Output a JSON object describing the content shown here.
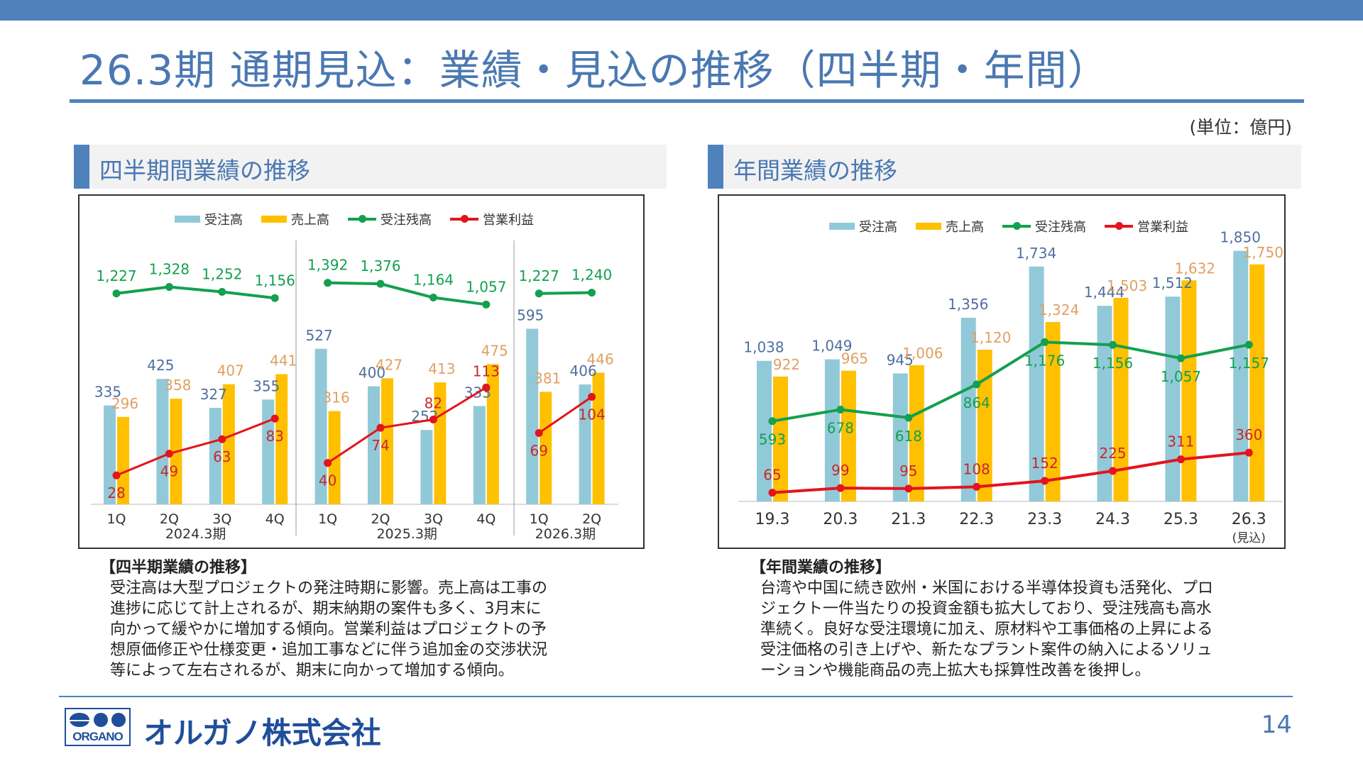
{
  "header": {
    "title": "26.3期 通期見込：業績・見込の推移（四半期・年間）",
    "unit": "(単位：億円)"
  },
  "sections": {
    "quarterly": "四半期間業績の推移",
    "annual": "年間業績の推移"
  },
  "legend": [
    "受注高",
    "売上高",
    "受注残高",
    "営業利益"
  ],
  "colors": {
    "orders": "#92c9d9",
    "sales": "#ffc000",
    "backlog": "#13a04f",
    "op": "#e3141c",
    "accent": "#4f81bd",
    "orders_label": "#4f6f9f",
    "sales_label": "#e0a060",
    "op_label": "#c8282c"
  },
  "chart_data": [
    {
      "type": "bar",
      "title": "四半期間業績の推移",
      "categories": [
        "1Q",
        "2Q",
        "3Q",
        "4Q",
        "1Q",
        "2Q",
        "3Q",
        "4Q",
        "1Q",
        "2Q"
      ],
      "groups": [
        {
          "label": "2024.3期",
          "count": 4
        },
        {
          "label": "2025.3期",
          "count": 4
        },
        {
          "label": "2026.3期",
          "count": 2
        }
      ],
      "series": [
        {
          "name": "受注高",
          "kind": "bar",
          "values": [
            335,
            425,
            327,
            355,
            527,
            400,
            252,
            333,
            595,
            406
          ]
        },
        {
          "name": "売上高",
          "kind": "bar",
          "values": [
            296,
            358,
            407,
            441,
            316,
            427,
            413,
            475,
            381,
            446
          ]
        },
        {
          "name": "受注残高",
          "kind": "line",
          "values": [
            1227,
            1328,
            1252,
            1156,
            1392,
            1376,
            1164,
            1057,
            1227,
            1240
          ]
        },
        {
          "name": "営業利益",
          "kind": "line",
          "values": [
            28,
            49,
            63,
            83,
            40,
            74,
            82,
            113,
            69,
            104
          ]
        }
      ],
      "legend_position": "top",
      "grid": false
    },
    {
      "type": "bar",
      "title": "年間業績の推移",
      "categories": [
        "19.3",
        "20.3",
        "21.3",
        "22.3",
        "23.3",
        "24.3",
        "25.3",
        "26.3"
      ],
      "category_note": "(見込)",
      "series": [
        {
          "name": "受注高",
          "kind": "bar",
          "values": [
            1038,
            1049,
            945,
            1356,
            1734,
            1444,
            1512,
            1850
          ]
        },
        {
          "name": "売上高",
          "kind": "bar",
          "values": [
            922,
            965,
            1006,
            1120,
            1324,
            1503,
            1632,
            1750
          ]
        },
        {
          "name": "受注残高",
          "kind": "line",
          "values": [
            593,
            678,
            618,
            864,
            1176,
            1156,
            1057,
            1157
          ]
        },
        {
          "name": "営業利益",
          "kind": "line",
          "values": [
            65,
            99,
            95,
            108,
            152,
            225,
            311,
            360
          ]
        }
      ],
      "legend_position": "top",
      "grid": false
    }
  ],
  "notes": {
    "quarterly": {
      "heading": "【四半期業績の推移】",
      "lines": [
        "受注高は大型プロジェクトの発注時期に影響。売上高は工事の",
        "進捗に応じて計上されるが、期末納期の案件も多く、3月末に",
        "向かって緩やかに増加する傾向。営業利益はプロジェクトの予",
        "想原価修正や仕様変更・追加工事などに伴う追加金の交渉状況",
        "等によって左右されるが、期末に向かって増加する傾向。"
      ]
    },
    "annual": {
      "heading": "【年間業績の推移】",
      "lines": [
        "台湾や中国に続き欧州・米国における半導体投資も活発化、プロ",
        "ジェクト一件当たりの投資金額も拡大しており、受注残高も高水",
        "準続く。良好な受注環境に加え、原材料や工事価格の上昇による",
        "受注価格の引き上げや、新たなプラント案件の納入によるソリュ",
        "ーションや機能商品の売上拡大も採算性改善を後押し。"
      ]
    }
  },
  "footer": {
    "company": "オルガノ株式会社",
    "logo_text": "ORGANO",
    "page": "14"
  }
}
